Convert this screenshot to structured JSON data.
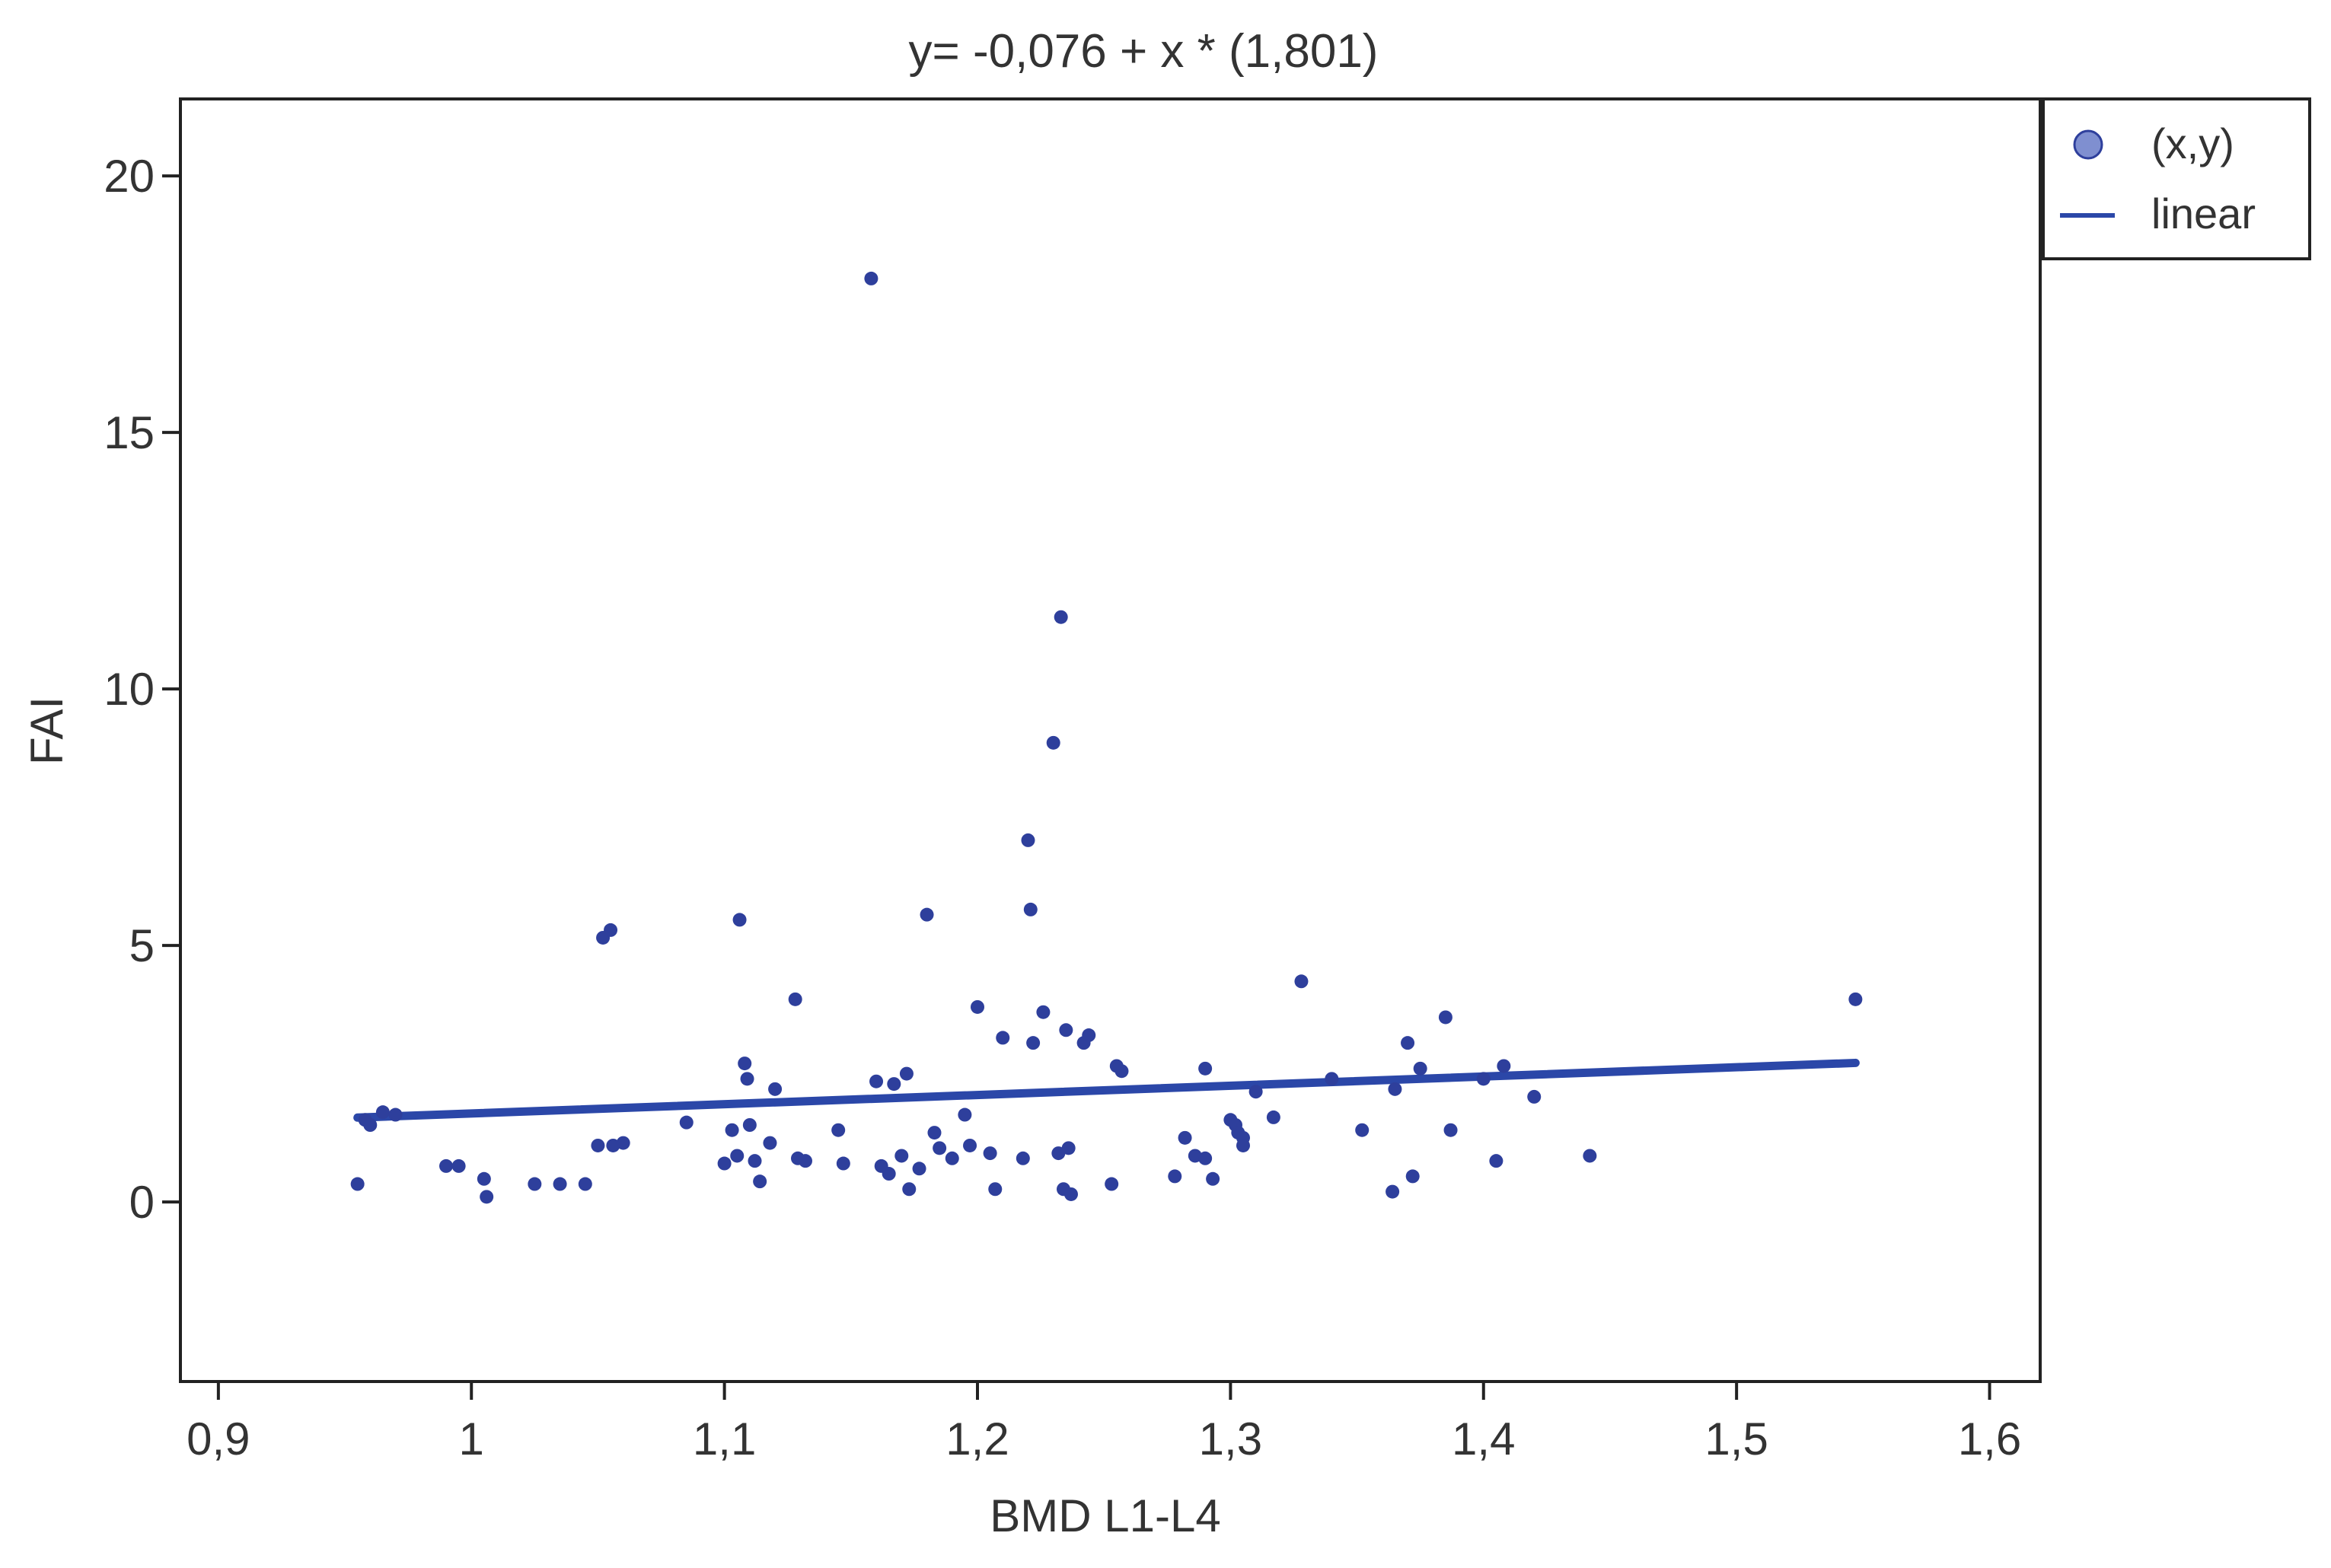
{
  "chart_data": {
    "type": "scatter",
    "title": "y= -0,076 + x * (1,801)",
    "xlabel": "BMD L1-L4",
    "ylabel": "FAI",
    "xlim": [
      0.885,
      1.62
    ],
    "ylim": [
      -3.5,
      21.5
    ],
    "x_ticks": [
      {
        "value": 0.9,
        "label": "0,9"
      },
      {
        "value": 1.0,
        "label": "1"
      },
      {
        "value": 1.1,
        "label": "1,1"
      },
      {
        "value": 1.2,
        "label": "1,2"
      },
      {
        "value": 1.3,
        "label": "1,3"
      },
      {
        "value": 1.4,
        "label": "1,4"
      },
      {
        "value": 1.5,
        "label": "1,5"
      },
      {
        "value": 1.6,
        "label": "1,6"
      }
    ],
    "y_ticks": [
      {
        "value": 0,
        "label": "0"
      },
      {
        "value": 5,
        "label": "5"
      },
      {
        "value": 10,
        "label": "10"
      },
      {
        "value": 15,
        "label": "15"
      },
      {
        "value": 20,
        "label": "20"
      }
    ],
    "grid": false,
    "legend_position": "top-right, outside plot",
    "legend": [
      {
        "label": "(x,y)",
        "marker": "circle"
      },
      {
        "label": "linear",
        "marker": "line"
      }
    ],
    "colors": {
      "points": "#2e3f9c",
      "line": "#2b47a8",
      "legend_marker": "#7f8fd0"
    },
    "series": [
      {
        "name": "(x,y)",
        "type": "scatter",
        "points": [
          [
            0.955,
            0.35
          ],
          [
            0.958,
            1.6
          ],
          [
            0.96,
            1.5
          ],
          [
            0.965,
            1.75
          ],
          [
            0.97,
            1.7
          ],
          [
            0.99,
            0.7
          ],
          [
            0.995,
            0.7
          ],
          [
            1.005,
            0.45
          ],
          [
            1.006,
            0.1
          ],
          [
            1.025,
            0.35
          ],
          [
            1.035,
            0.35
          ],
          [
            1.045,
            0.35
          ],
          [
            1.05,
            1.1
          ],
          [
            1.052,
            5.15
          ],
          [
            1.055,
            5.3
          ],
          [
            1.056,
            1.1
          ],
          [
            1.06,
            1.15
          ],
          [
            1.085,
            1.55
          ],
          [
            1.1,
            0.75
          ],
          [
            1.103,
            1.4
          ],
          [
            1.105,
            0.9
          ],
          [
            1.106,
            5.5
          ],
          [
            1.108,
            2.7
          ],
          [
            1.109,
            2.4
          ],
          [
            1.11,
            1.5
          ],
          [
            1.112,
            0.8
          ],
          [
            1.114,
            0.4
          ],
          [
            1.118,
            1.15
          ],
          [
            1.12,
            2.2
          ],
          [
            1.128,
            3.95
          ],
          [
            1.129,
            0.85
          ],
          [
            1.132,
            0.8
          ],
          [
            1.145,
            1.4
          ],
          [
            1.147,
            0.75
          ],
          [
            1.158,
            18.0
          ],
          [
            1.16,
            2.35
          ],
          [
            1.162,
            0.7
          ],
          [
            1.165,
            0.55
          ],
          [
            1.167,
            2.3
          ],
          [
            1.17,
            0.9
          ],
          [
            1.172,
            2.5
          ],
          [
            1.173,
            0.25
          ],
          [
            1.177,
            0.65
          ],
          [
            1.18,
            5.6
          ],
          [
            1.183,
            1.35
          ],
          [
            1.185,
            1.05
          ],
          [
            1.19,
            0.85
          ],
          [
            1.195,
            1.7
          ],
          [
            1.197,
            1.1
          ],
          [
            1.2,
            3.8
          ],
          [
            1.205,
            0.95
          ],
          [
            1.207,
            0.25
          ],
          [
            1.21,
            3.2
          ],
          [
            1.218,
            0.85
          ],
          [
            1.22,
            7.05
          ],
          [
            1.221,
            5.7
          ],
          [
            1.222,
            3.1
          ],
          [
            1.226,
            3.7
          ],
          [
            1.23,
            8.95
          ],
          [
            1.232,
            0.95
          ],
          [
            1.233,
            11.4
          ],
          [
            1.234,
            0.25
          ],
          [
            1.235,
            3.35
          ],
          [
            1.236,
            1.05
          ],
          [
            1.237,
            0.15
          ],
          [
            1.242,
            3.1
          ],
          [
            1.244,
            3.25
          ],
          [
            1.253,
            0.35
          ],
          [
            1.255,
            2.65
          ],
          [
            1.257,
            2.55
          ],
          [
            1.278,
            0.5
          ],
          [
            1.282,
            1.25
          ],
          [
            1.286,
            0.9
          ],
          [
            1.29,
            0.85
          ],
          [
            1.29,
            2.6
          ],
          [
            1.293,
            0.45
          ],
          [
            1.3,
            1.6
          ],
          [
            1.302,
            1.5
          ],
          [
            1.303,
            1.35
          ],
          [
            1.305,
            1.25
          ],
          [
            1.305,
            1.1
          ],
          [
            1.31,
            2.15
          ],
          [
            1.317,
            1.65
          ],
          [
            1.328,
            4.3
          ],
          [
            1.34,
            2.4
          ],
          [
            1.352,
            1.4
          ],
          [
            1.364,
            0.2
          ],
          [
            1.365,
            2.2
          ],
          [
            1.37,
            3.1
          ],
          [
            1.372,
            0.5
          ],
          [
            1.375,
            2.6
          ],
          [
            1.385,
            3.6
          ],
          [
            1.387,
            1.4
          ],
          [
            1.4,
            2.4
          ],
          [
            1.405,
            0.8
          ],
          [
            1.408,
            2.65
          ],
          [
            1.42,
            2.05
          ],
          [
            1.442,
            0.9
          ],
          [
            1.547,
            3.95
          ]
        ]
      },
      {
        "name": "linear",
        "type": "line",
        "intercept": -0.076,
        "slope": 1.801,
        "x_range": [
          0.955,
          1.547
        ]
      }
    ]
  }
}
